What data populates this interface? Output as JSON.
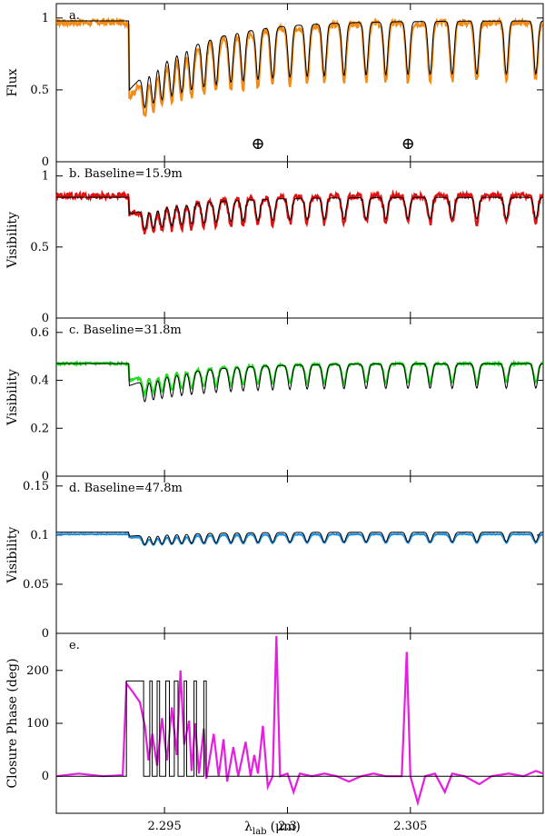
{
  "colors": {
    "panel_a": "#f08c1a",
    "panel_b": "#e01010",
    "panel_c": "#22dd22",
    "panel_d": "#1f8fe0",
    "panel_e": "#e51ee0",
    "model": "#000000"
  },
  "xaxis": {
    "label_main": "λ",
    "label_sub": "lab",
    "label_unit": "(μm)",
    "range": [
      2.2906,
      2.3104
    ],
    "ticks": [
      2.295,
      2.3,
      2.305
    ],
    "tick_labels": [
      "2.295",
      "2.3",
      "2.305"
    ]
  },
  "chart_data": [
    {
      "panel": "a",
      "type": "line",
      "panel_label": "a.",
      "ylabel": "Flux",
      "ylim": [
        0,
        1.1
      ],
      "yticks": [
        0,
        0.5,
        1
      ],
      "ytick_labels": [
        "0",
        "0.5",
        "1"
      ],
      "markers": [
        {
          "symbol": "⊕",
          "x": 2.2988
        },
        {
          "symbol": "⊕",
          "x": 2.3049
        }
      ],
      "series": [
        {
          "color_key": "panel_a",
          "continuum": 0.97,
          "band_head": 2.29355,
          "bh_depth": 0.6,
          "bh_recover": 0.9,
          "lines": [
            2.2942,
            2.29455,
            2.2949,
            2.2953,
            2.2957,
            2.2961,
            2.2966,
            2.2971,
            2.2977,
            2.2982,
            2.2988,
            2.2994,
            2.3001,
            2.3008,
            2.3015,
            2.3023,
            2.3032,
            2.304,
            2.3049,
            2.3058,
            2.3067,
            2.3077,
            2.3089,
            2.3101
          ],
          "depth": 0.42,
          "width": 0.00012,
          "jitter": 0.05
        },
        {
          "color_key": "model",
          "continuum": 0.98,
          "band_head": 2.29355,
          "bh_depth": 0.55,
          "bh_recover": 0.9,
          "lines": [
            2.2942,
            2.29455,
            2.2949,
            2.2953,
            2.2957,
            2.2961,
            2.2966,
            2.2971,
            2.2977,
            2.2982,
            2.2988,
            2.2994,
            2.3001,
            2.3008,
            2.3015,
            2.3023,
            2.3032,
            2.304,
            2.3049,
            2.3058,
            2.3067,
            2.3077,
            2.3089,
            2.3101
          ],
          "depth": 0.38,
          "width": 0.00011,
          "jitter": 0
        }
      ]
    },
    {
      "panel": "b",
      "type": "line",
      "panel_label": "b.  Baseline=15.9m",
      "ylabel": "Visibility",
      "ylim": [
        0,
        1.1
      ],
      "yticks": [
        0,
        0.5,
        1
      ],
      "ytick_labels": [
        "0",
        "0.5",
        "1"
      ],
      "series": [
        {
          "color_key": "panel_b",
          "continuum": 0.86,
          "band_head": 2.29355,
          "bh_depth": 0.3,
          "bh_recover": 0.5,
          "lines": [
            2.2942,
            2.29455,
            2.2949,
            2.2953,
            2.2957,
            2.2961,
            2.2966,
            2.2971,
            2.2977,
            2.2982,
            2.2988,
            2.2994,
            2.3001,
            2.3008,
            2.3015,
            2.3023,
            2.3032,
            2.304,
            2.3049,
            2.3058,
            2.3067,
            2.3077,
            2.3089,
            2.3101
          ],
          "depth": 0.22,
          "width": 0.00012,
          "jitter": 0.05
        },
        {
          "color_key": "model",
          "continuum": 0.85,
          "band_head": 2.29355,
          "bh_depth": 0.28,
          "bh_recover": 0.5,
          "lines": [
            2.2942,
            2.29455,
            2.2949,
            2.2953,
            2.2957,
            2.2961,
            2.2966,
            2.2971,
            2.2977,
            2.2982,
            2.2988,
            2.2994,
            2.3001,
            2.3008,
            2.3015,
            2.3023,
            2.3032,
            2.304,
            2.3049,
            2.3058,
            2.3067,
            2.3077,
            2.3089,
            2.3101
          ],
          "depth": 0.18,
          "width": 0.00011,
          "jitter": 0
        }
      ]
    },
    {
      "panel": "c",
      "type": "line",
      "panel_label": "c.  Baseline=31.8m",
      "ylabel": "Visibility",
      "ylim": [
        0,
        0.66
      ],
      "yticks": [
        0,
        0.2,
        0.4,
        0.6
      ],
      "ytick_labels": [
        "0",
        "0.2",
        "0.4",
        "0.6"
      ],
      "series": [
        {
          "color_key": "panel_c",
          "continuum": 0.47,
          "band_head": 2.29355,
          "bh_depth": 0.25,
          "bh_recover": 0.6,
          "lines": [
            2.2942,
            2.29455,
            2.2949,
            2.2953,
            2.2957,
            2.2961,
            2.2966,
            2.2971,
            2.2977,
            2.2982,
            2.2988,
            2.2994,
            2.3001,
            2.3008,
            2.3015,
            2.3023,
            2.3032,
            2.304,
            2.3049,
            2.3058,
            2.3067,
            2.3077,
            2.3089,
            2.3101
          ],
          "depth": 0.17,
          "width": 0.00012,
          "jitter": 0.02
        },
        {
          "color_key": "model",
          "continuum": 0.47,
          "band_head": 2.29355,
          "bh_depth": 0.33,
          "bh_recover": 0.6,
          "lines": [
            2.2942,
            2.29455,
            2.2949,
            2.2953,
            2.2957,
            2.2961,
            2.2966,
            2.2971,
            2.2977,
            2.2982,
            2.2988,
            2.2994,
            2.3001,
            2.3008,
            2.3015,
            2.3023,
            2.3032,
            2.304,
            2.3049,
            2.3058,
            2.3067,
            2.3077,
            2.3089,
            2.3101
          ],
          "depth": 0.22,
          "width": 0.00011,
          "jitter": 0
        }
      ]
    },
    {
      "panel": "d",
      "type": "line",
      "panel_label": "d.  Baseline=47.8m",
      "ylabel": "Visibility",
      "ylim": [
        0,
        0.16
      ],
      "yticks": [
        0,
        0.05,
        0.1,
        0.15
      ],
      "ytick_labels": [
        "0",
        "0.05",
        "0.1",
        "0.15"
      ],
      "series": [
        {
          "color_key": "panel_d",
          "continuum": 0.101,
          "band_head": 2.29355,
          "bh_depth": 0.07,
          "bh_recover": 0.5,
          "lines": [
            2.2942,
            2.29455,
            2.2949,
            2.2953,
            2.2957,
            2.2961,
            2.2966,
            2.2971,
            2.2977,
            2.2982,
            2.2988,
            2.2994,
            2.3001,
            2.3008,
            2.3015,
            2.3023,
            2.3032,
            2.304,
            2.3049,
            2.3058,
            2.3067,
            2.3077,
            2.3089,
            2.3101
          ],
          "depth": 0.085,
          "width": 0.00013,
          "jitter": 0.008
        },
        {
          "color_key": "model",
          "continuum": 0.103,
          "band_head": 2.29355,
          "bh_depth": 0.08,
          "bh_recover": 0.5,
          "lines": [
            2.2942,
            2.29455,
            2.2949,
            2.2953,
            2.2957,
            2.2961,
            2.2966,
            2.2971,
            2.2977,
            2.2982,
            2.2988,
            2.2994,
            2.3001,
            2.3008,
            2.3015,
            2.3023,
            2.3032,
            2.304,
            2.3049,
            2.3058,
            2.3067,
            2.3077,
            2.3089,
            2.3101
          ],
          "depth": 0.097,
          "width": 0.00011,
          "jitter": 0
        }
      ]
    },
    {
      "panel": "e",
      "type": "line",
      "panel_label": "e.",
      "ylabel": "Closure Phase (deg)",
      "ylim": [
        -70,
        270
      ],
      "yticks": [
        0,
        100,
        200
      ],
      "ytick_labels": [
        "0",
        "100",
        "200"
      ],
      "series": [
        {
          "color_key": "panel_e",
          "points": [
            [
              2.2906,
              0
            ],
            [
              2.2915,
              5
            ],
            [
              2.2925,
              0
            ],
            [
              2.2933,
              2
            ],
            [
              2.29345,
              175
            ],
            [
              2.2937,
              160
            ],
            [
              2.294,
              140
            ],
            [
              2.2942,
              95
            ],
            [
              2.29435,
              30
            ],
            [
              2.2945,
              80
            ],
            [
              2.2947,
              20
            ],
            [
              2.2949,
              110
            ],
            [
              2.2951,
              30
            ],
            [
              2.2953,
              130
            ],
            [
              2.2955,
              40
            ],
            [
              2.29565,
              200
            ],
            [
              2.2958,
              60
            ],
            [
              2.296,
              105
            ],
            [
              2.2961,
              10
            ],
            [
              2.29625,
              100
            ],
            [
              2.2964,
              5
            ],
            [
              2.2966,
              90
            ],
            [
              2.2967,
              -5
            ],
            [
              2.297,
              80
            ],
            [
              2.2972,
              0
            ],
            [
              2.2974,
              70
            ],
            [
              2.29755,
              -10
            ],
            [
              2.2978,
              55
            ],
            [
              2.298,
              0
            ],
            [
              2.2983,
              65
            ],
            [
              2.2985,
              0
            ],
            [
              2.29865,
              40
            ],
            [
              2.2988,
              5
            ],
            [
              2.299,
              95
            ],
            [
              2.2992,
              -20
            ],
            [
              2.2994,
              0
            ],
            [
              2.29955,
              265
            ],
            [
              2.2997,
              0
            ],
            [
              2.3,
              5
            ],
            [
              2.30025,
              -30
            ],
            [
              2.3005,
              5
            ],
            [
              2.301,
              0
            ],
            [
              2.3015,
              5
            ],
            [
              2.302,
              0
            ],
            [
              2.3025,
              -10
            ],
            [
              2.303,
              0
            ],
            [
              2.3035,
              5
            ],
            [
              2.304,
              0
            ],
            [
              2.30465,
              0
            ],
            [
              2.30485,
              235
            ],
            [
              2.305,
              0
            ],
            [
              2.3053,
              -50
            ],
            [
              2.3056,
              0
            ],
            [
              2.306,
              5
            ],
            [
              2.3064,
              -30
            ],
            [
              2.3067,
              5
            ],
            [
              2.3072,
              0
            ],
            [
              2.3078,
              -15
            ],
            [
              2.3083,
              0
            ],
            [
              2.309,
              5
            ],
            [
              2.3096,
              0
            ],
            [
              2.3101,
              10
            ],
            [
              2.3104,
              5
            ]
          ]
        },
        {
          "color_key": "model",
          "points": [
            [
              2.2906,
              0
            ],
            [
              2.29345,
              0
            ],
            [
              2.29345,
              180
            ],
            [
              2.29415,
              180
            ],
            [
              2.29415,
              0
            ],
            [
              2.2944,
              0
            ],
            [
              2.2944,
              180
            ],
            [
              2.2945,
              180
            ],
            [
              2.2945,
              0
            ],
            [
              2.2947,
              0
            ],
            [
              2.2947,
              180
            ],
            [
              2.2948,
              180
            ],
            [
              2.2948,
              0
            ],
            [
              2.29505,
              0
            ],
            [
              2.29505,
              180
            ],
            [
              2.2952,
              180
            ],
            [
              2.2952,
              0
            ],
            [
              2.2954,
              0
            ],
            [
              2.2954,
              180
            ],
            [
              2.29555,
              180
            ],
            [
              2.29555,
              0
            ],
            [
              2.2958,
              0
            ],
            [
              2.2958,
              180
            ],
            [
              2.2959,
              180
            ],
            [
              2.2959,
              0
            ],
            [
              2.2962,
              0
            ],
            [
              2.2962,
              180
            ],
            [
              2.2963,
              180
            ],
            [
              2.2963,
              0
            ],
            [
              2.2966,
              0
            ],
            [
              2.2966,
              180
            ],
            [
              2.2967,
              180
            ],
            [
              2.2967,
              0
            ],
            [
              2.3104,
              0
            ]
          ]
        }
      ]
    }
  ]
}
